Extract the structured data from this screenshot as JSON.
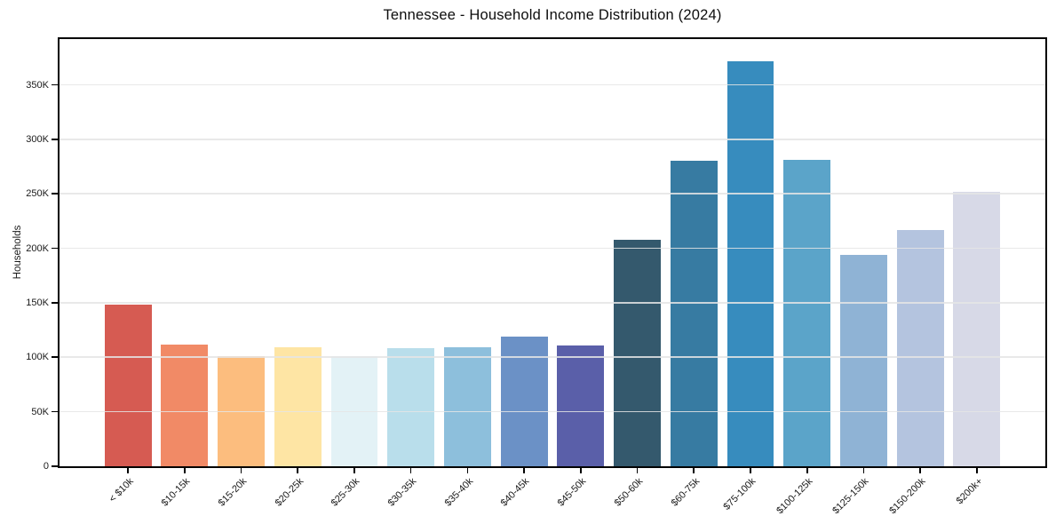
{
  "chart_data": {
    "type": "bar",
    "title": "Tennessee - Household Income Distribution (2024)",
    "xlabel": "",
    "ylabel": "Households",
    "categories": [
      "< $10k",
      "$10-15k",
      "$15-20k",
      "$20-25k",
      "$25-30k",
      "$30-35k",
      "$35-40k",
      "$40-45k",
      "$45-50k",
      "$50-60k",
      "$60-75k",
      "$75-100k",
      "$100-125k",
      "$125-150k",
      "$150-200k",
      "$200k+"
    ],
    "values": [
      148000,
      112000,
      101000,
      109000,
      101000,
      108000,
      109000,
      119000,
      111000,
      208000,
      280000,
      372000,
      281000,
      194000,
      217000,
      252000
    ],
    "bar_colors": [
      "#d65b52",
      "#f18a66",
      "#fcbd7e",
      "#fee5a4",
      "#e3f2f6",
      "#b9deeb",
      "#8dbfdc",
      "#6b91c6",
      "#5a5fa9",
      "#34596d",
      "#377ba2",
      "#378cbe",
      "#5ba4c9",
      "#8fb3d5",
      "#b4c4df",
      "#d7d9e7"
    ],
    "ylim": [
      0,
      392000
    ],
    "yticks": [
      {
        "value": 0,
        "label": "0"
      },
      {
        "value": 50000,
        "label": "50K"
      },
      {
        "value": 100000,
        "label": "100K"
      },
      {
        "value": 150000,
        "label": "150K"
      },
      {
        "value": 200000,
        "label": "200K"
      },
      {
        "value": 250000,
        "label": "250K"
      },
      {
        "value": 300000,
        "label": "300K"
      },
      {
        "value": 350000,
        "label": "350K"
      }
    ],
    "grid": "horizontal",
    "legend": "none"
  },
  "style_colors": {
    "background": "#ffffff",
    "spine": "#000000",
    "gridline": "#e5e5e5",
    "tick_label": "#1a1a1a"
  }
}
